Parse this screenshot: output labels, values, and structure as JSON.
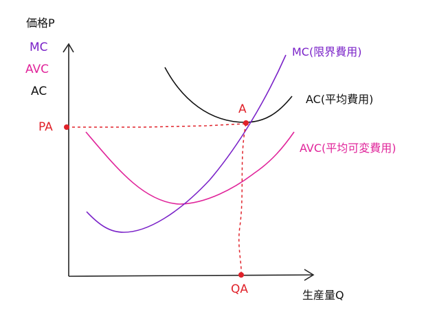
{
  "axes": {
    "y_title": "価格P",
    "x_title": "生産量Q"
  },
  "legend": {
    "mc": "MC",
    "avc": "AVC",
    "ac": "AC"
  },
  "curves": {
    "mc_label": "MC(限界費用)",
    "ac_label": "AC(平均費用)",
    "avc_label": "AVC(平均可変費用)"
  },
  "points": {
    "a": "A",
    "pa": "PA",
    "qa": "QA"
  },
  "colors": {
    "mc": "#7a22c8",
    "avc": "#e0249a",
    "ac": "#111111",
    "marker": "#e0222a",
    "axis": "#222222"
  }
}
